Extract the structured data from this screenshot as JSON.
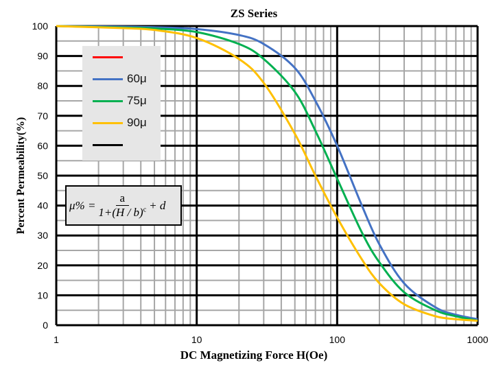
{
  "chart_data": {
    "type": "line",
    "title": "ZS Series",
    "xlabel": "DC Magnetizing Force H(Oe)",
    "ylabel": "Percent Permeability(%)",
    "xscale": "log",
    "xlim": [
      1,
      1000
    ],
    "ylim": [
      0,
      100
    ],
    "xticks": [
      "1",
      "10",
      "100",
      "1000"
    ],
    "yticks": [
      "0",
      "10",
      "20",
      "30",
      "40",
      "50",
      "60",
      "70",
      "80",
      "90",
      "100"
    ],
    "grid": true,
    "legend_position": "top-left",
    "legend": [
      "",
      "60μ",
      "75μ",
      "90μ",
      ""
    ],
    "legend_colors": [
      "#ff0000",
      "#4472c4",
      "#00b050",
      "#ffc000",
      "#000000"
    ],
    "series": [
      {
        "name": "60μ",
        "color": "#4472c4",
        "x": [
          1,
          3,
          5,
          10,
          20,
          30,
          50,
          70,
          100,
          150,
          200,
          300,
          500,
          700,
          1000
        ],
        "y": [
          100,
          99.8,
          99.6,
          99,
          97,
          94,
          86,
          75,
          60,
          40,
          27,
          14,
          6,
          3.5,
          2
        ]
      },
      {
        "name": "75μ",
        "color": "#00b050",
        "x": [
          1,
          3,
          5,
          10,
          20,
          30,
          50,
          70,
          100,
          150,
          200,
          300,
          500,
          700,
          1000
        ],
        "y": [
          100,
          99.5,
          99.2,
          98,
          94,
          89,
          78,
          65,
          49,
          31,
          21,
          11,
          5,
          3,
          1.5
        ]
      },
      {
        "name": "90μ",
        "color": "#ffc000",
        "x": [
          1,
          3,
          5,
          10,
          20,
          30,
          50,
          70,
          100,
          150,
          200,
          300,
          500,
          700,
          1000
        ],
        "y": [
          100,
          99.3,
          98.7,
          96,
          89,
          81,
          64,
          50,
          36,
          22,
          14,
          7,
          3,
          2,
          1.5
        ]
      }
    ],
    "formula": {
      "lhs": "μ% =",
      "num": "a",
      "den": "1+(H / b)",
      "exp": "c",
      "tail": "+ d"
    }
  }
}
